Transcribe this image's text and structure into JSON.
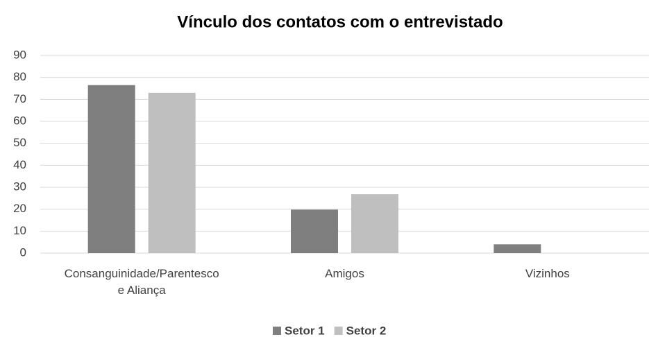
{
  "chart_data": {
    "type": "bar",
    "title": "Vínculo dos contatos com o entrevistado",
    "categories": [
      "Consanguinidade/Parentesco\ne Aliança",
      "Amigos",
      "Vizinhos"
    ],
    "series": [
      {
        "name": "Setor 1",
        "color": "#7f7f7f",
        "values": [
          76.5,
          19.8,
          4
        ]
      },
      {
        "name": "Setor 2",
        "color": "#bfbfbf",
        "values": [
          73,
          26.8,
          0
        ]
      }
    ],
    "ylim": [
      0,
      90
    ],
    "yticks": [
      0,
      10,
      20,
      30,
      40,
      50,
      60,
      70,
      80,
      90
    ],
    "grid": true,
    "legend": "bottom"
  }
}
